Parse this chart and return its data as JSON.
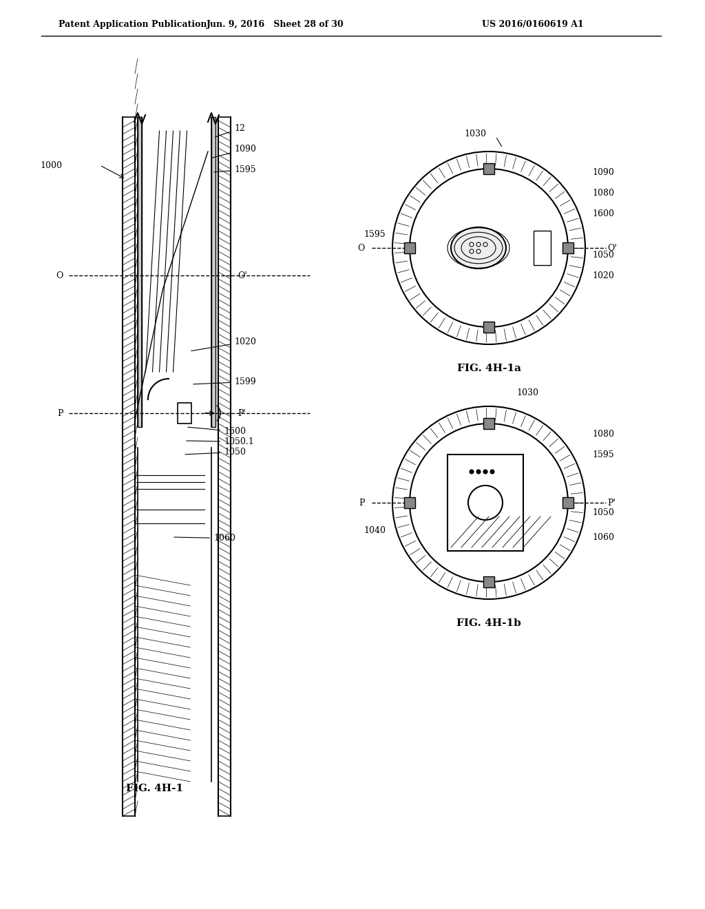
{
  "title_left": "Patent Application Publication",
  "title_center": "Jun. 9, 2016   Sheet 28 of 30",
  "title_right": "US 2016/0160619 A1",
  "fig_label_main": "FIG. 4H-1",
  "fig_label_4h1a": "FIG. 4H-1a",
  "fig_label_4h1b": "FIG. 4H-1b",
  "bg_color": "#ffffff",
  "line_color": "#000000",
  "hatch_color": "#000000"
}
